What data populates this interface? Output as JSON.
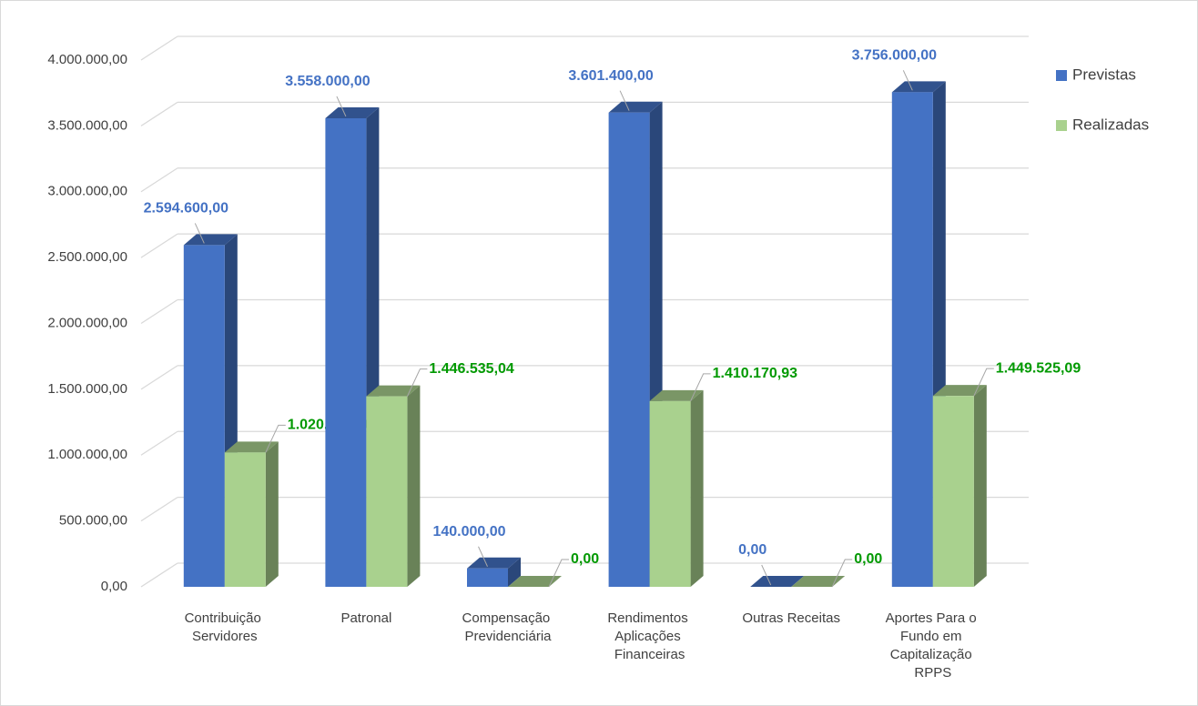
{
  "chart_data": {
    "type": "bar3d",
    "categories": [
      "Contribuição Servidores",
      "Patronal",
      "Compensação Previdenciária",
      "Rendimentos Aplicações Financeiras",
      "Outras Receitas",
      "Aportes  Para o Fundo em Capitalização RPPS"
    ],
    "series": [
      {
        "name": "Previstas",
        "color": "#4472c4",
        "label_color": "#4472c4",
        "values": [
          2594600,
          3558000,
          140000,
          3601400,
          0,
          3756000
        ],
        "value_labels": [
          "2.594.600,00",
          "3.558.000,00",
          "140.000,00",
          "3.601.400,00",
          "0,00",
          "3.756.000,00"
        ]
      },
      {
        "name": "Realizadas",
        "color": "#a9d18e",
        "label_color": "#009900",
        "values": [
          1020288.2,
          1446535.04,
          0,
          1410170.93,
          0,
          1449525.09
        ],
        "value_labels": [
          "1.020.288,20",
          "1.446.535,04",
          "0,00",
          "1.410.170,93",
          "0,00",
          "1.449.525,09"
        ]
      }
    ],
    "ylim": [
      0,
      4000000
    ],
    "yticks": [
      {
        "value": 0,
        "label": "0,00"
      },
      {
        "value": 500000,
        "label": "500.000,00"
      },
      {
        "value": 1000000,
        "label": "1.000.000,00"
      },
      {
        "value": 1500000,
        "label": "1.500.000,00"
      },
      {
        "value": 2000000,
        "label": "2.000.000,00"
      },
      {
        "value": 2500000,
        "label": "2.500.000,00"
      },
      {
        "value": 3000000,
        "label": "3.000.000,00"
      },
      {
        "value": 3500000,
        "label": "3.500.000,00"
      },
      {
        "value": 4000000,
        "label": "4.000.000,00"
      }
    ],
    "grid": true,
    "legend": "right"
  }
}
